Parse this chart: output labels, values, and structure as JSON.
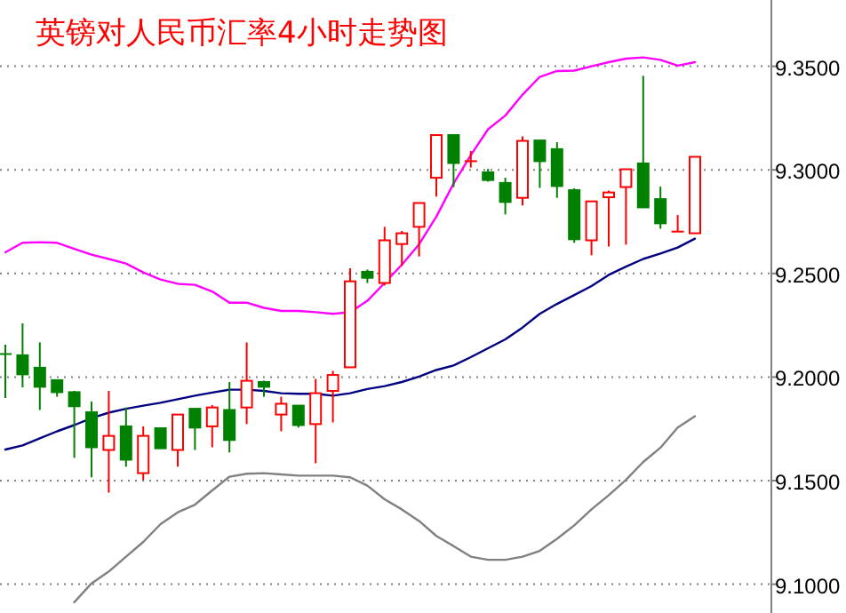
{
  "chart_data": {
    "type": "candlestick",
    "title": "英镑对人民币汇率4小时走势图",
    "categories": [
      null,
      null,
      null,
      null,
      null,
      null,
      null,
      null,
      null,
      null,
      null,
      null,
      null,
      null,
      null,
      null,
      null,
      null,
      null,
      null,
      null,
      null,
      null,
      null,
      null,
      null,
      null,
      null,
      null,
      null,
      null,
      null,
      null,
      null,
      null,
      null,
      null,
      null,
      null,
      null,
      null
    ],
    "ohlc": [
      [
        9.2111,
        9.2156,
        9.1899,
        9.2111
      ],
      [
        9.2105,
        9.2259,
        9.195,
        9.2013
      ],
      [
        9.2045,
        9.2167,
        9.1841,
        9.1953
      ],
      [
        9.1985,
        9.1985,
        9.1905,
        9.1927
      ],
      [
        9.1927,
        9.1933,
        9.161,
        9.1859
      ],
      [
        9.183,
        9.1882,
        9.1516,
        9.1661
      ],
      [
        9.1648,
        9.1933,
        9.1442,
        9.1716
      ],
      [
        9.1762,
        9.1853,
        9.1567,
        9.1601
      ],
      [
        9.1536,
        9.1762,
        9.1504,
        9.1716
      ],
      [
        9.1753,
        9.1753,
        9.1656,
        9.1656
      ],
      [
        9.1648,
        9.1819,
        9.1567,
        9.1819
      ],
      [
        9.1847,
        9.1847,
        9.1648,
        9.1756
      ],
      [
        9.1762,
        9.1865,
        9.1661,
        9.1853
      ],
      [
        9.1841,
        9.1976,
        9.1636,
        9.1696
      ],
      [
        9.1853,
        9.2167,
        9.1773,
        9.1982
      ],
      [
        9.1976,
        9.1982,
        9.1905,
        9.1953
      ],
      [
        9.1819,
        9.1905,
        9.1738,
        9.1871
      ],
      [
        9.1862,
        9.1862,
        9.1756,
        9.1768
      ],
      [
        9.1773,
        9.1991,
        9.1584,
        9.1922
      ],
      [
        9.1933,
        9.203,
        9.1781,
        9.201
      ],
      [
        9.2047,
        9.2525,
        9.2047,
        9.2462
      ],
      [
        9.2508,
        9.2519,
        9.2454,
        9.2479
      ],
      [
        9.2454,
        9.2725,
        9.2442,
        9.266
      ],
      [
        9.2642,
        9.2705,
        9.2536,
        9.2694
      ],
      [
        9.2725,
        9.284,
        9.2582,
        9.284
      ],
      [
        9.2962,
        9.3168,
        9.2871,
        9.3168
      ],
      [
        9.3168,
        9.3168,
        9.2917,
        9.3033
      ],
      [
        9.3042,
        9.3091,
        9.3011,
        9.3042
      ],
      [
        9.2988,
        9.3005,
        9.2943,
        9.2951
      ],
      [
        9.2937,
        9.2962,
        9.2785,
        9.2845
      ],
      [
        9.2865,
        9.3162,
        9.2828,
        9.314
      ],
      [
        9.3142,
        9.3142,
        9.2913,
        9.3042
      ],
      [
        9.31,
        9.3134,
        9.2865,
        9.2922
      ],
      [
        9.2902,
        9.2911,
        9.2648,
        9.2665
      ],
      [
        9.266,
        9.2848,
        9.2588,
        9.2848
      ],
      [
        9.2868,
        9.29,
        9.263,
        9.2891
      ],
      [
        9.2917,
        9.3003,
        9.2639,
        9.3003
      ],
      [
        9.3031,
        9.3454,
        9.2819,
        9.2819
      ],
      [
        9.2859,
        9.2919,
        9.2716,
        9.2742
      ],
      [
        9.2702,
        9.2782,
        9.2702,
        9.2702
      ],
      [
        9.2694,
        9.3063,
        9.2694,
        9.3063
      ]
    ],
    "colors": [
      "#008000",
      "#008000",
      "#008000",
      "#008000",
      "#008000",
      "#008000",
      "#ff0000",
      "#008000",
      "#ff0000",
      "#008000",
      "#ff0000",
      "#008000",
      "#ff0000",
      "#008000",
      "#ff0000",
      "#008000",
      "#ff0000",
      "#008000",
      "#ff0000",
      "#ff0000",
      "#ff0000",
      "#008000",
      "#ff0000",
      "#ff0000",
      "#ff0000",
      "#ff0000",
      "#008000",
      "#ff0000",
      "#008000",
      "#008000",
      "#ff0000",
      "#008000",
      "#008000",
      "#008000",
      "#ff0000",
      "#ff0000",
      "#ff0000",
      "#008000",
      "#008000",
      "#ff0000",
      "#ff0000"
    ],
    "series": [
      {
        "type": "line",
        "color": "#ff00ff",
        "values": [
          9.2602,
          9.2648,
          9.2651,
          9.2648,
          9.2619,
          9.2591,
          9.257,
          9.2548,
          9.2505,
          9.2471,
          9.245,
          9.2445,
          9.2413,
          9.2359,
          9.2359,
          9.2334,
          9.2319,
          9.2319,
          9.2313,
          9.2305,
          9.2313,
          9.2368,
          9.2454,
          9.2542,
          9.2641,
          9.2774,
          9.2934,
          9.3071,
          9.3196,
          9.3262,
          9.3363,
          9.3449,
          9.3477,
          9.3479,
          9.35,
          9.352,
          9.3537,
          9.3543,
          9.3531,
          9.3503,
          9.352
        ]
      },
      {
        "type": "line",
        "color": "#000080",
        "values": [
          9.165,
          9.167,
          9.1704,
          9.1738,
          9.1768,
          9.1802,
          9.1828,
          9.1847,
          9.1862,
          9.1876,
          9.1893,
          9.191,
          9.1925,
          9.1939,
          9.1939,
          9.1933,
          9.1922,
          9.1919,
          9.1919,
          9.191,
          9.1922,
          9.1942,
          9.1956,
          9.1976,
          9.2002,
          9.2034,
          9.2056,
          9.2096,
          9.2139,
          9.2182,
          9.2239,
          9.2305,
          9.2353,
          9.2396,
          9.2439,
          9.2493,
          9.2533,
          9.257,
          9.2596,
          9.2625,
          9.2668
        ]
      },
      {
        "type": "line",
        "color": "#808080",
        "values": [
          null,
          null,
          null,
          null,
          9.0913,
          9.1004,
          9.1061,
          9.1133,
          9.1204,
          9.129,
          9.1347,
          9.1384,
          9.1453,
          9.1519,
          9.1533,
          9.1536,
          9.153,
          9.1524,
          9.1524,
          9.1524,
          9.1516,
          9.1476,
          9.141,
          9.1361,
          9.1305,
          9.1233,
          9.1184,
          9.1133,
          9.1118,
          9.1118,
          9.1133,
          9.1161,
          9.1219,
          9.1284,
          9.1361,
          9.143,
          9.1504,
          9.159,
          9.1659,
          9.1756,
          9.1811
        ]
      }
    ],
    "ylim": [
      9.0861,
      9.382
    ],
    "yticks": [
      {
        "value": 9.1,
        "label": "9.1000"
      },
      {
        "value": 9.15,
        "label": "9.1500"
      },
      {
        "value": 9.2,
        "label": "9.2000"
      },
      {
        "value": 9.25,
        "label": "9.2500"
      },
      {
        "value": 9.3,
        "label": "9.3000"
      },
      {
        "value": 9.35,
        "label": "9.3500"
      }
    ],
    "grid": "y",
    "tick_labels": "y",
    "line_style": "solid"
  }
}
